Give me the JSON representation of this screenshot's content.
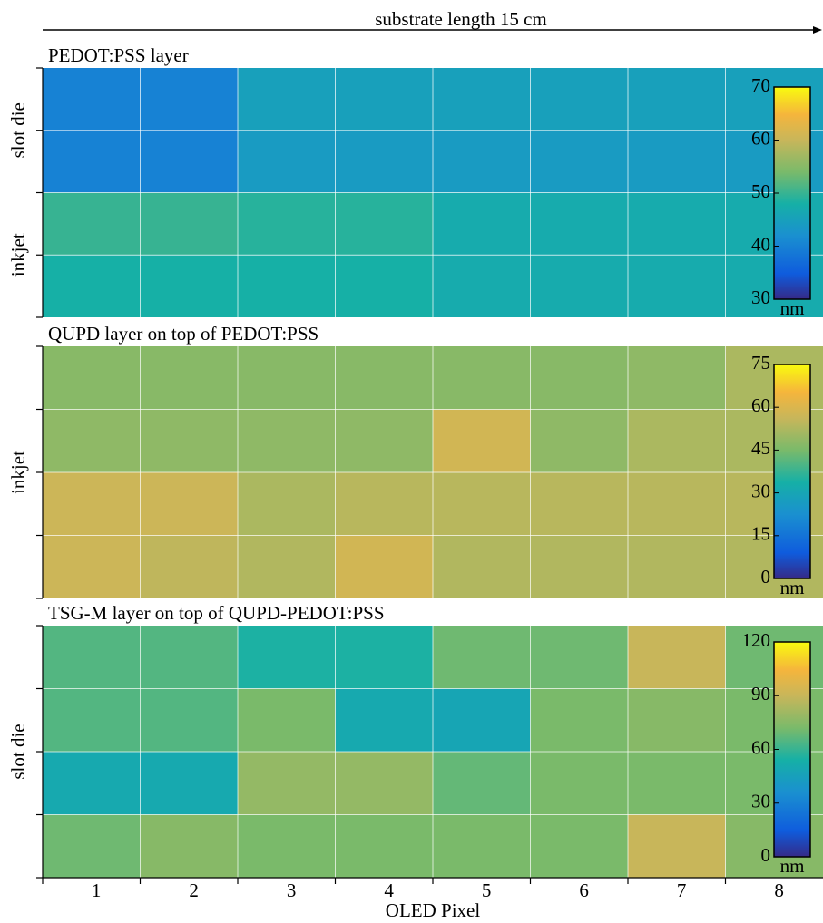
{
  "header": "substrate length 15 cm",
  "x_axis": {
    "label": "OLED Pixel",
    "categories": [
      "1",
      "2",
      "3",
      "4",
      "5",
      "6",
      "7",
      "8"
    ]
  },
  "chart_data": [
    {
      "type": "heatmap",
      "title": "PEDOT:PSS layer",
      "y_labels": [
        "slot die",
        "inkjet"
      ],
      "values": [
        [
          40,
          40,
          45,
          45,
          45,
          45,
          45,
          45
        ],
        [
          40,
          40,
          44,
          44,
          44,
          44,
          44,
          44
        ],
        [
          50,
          50,
          49,
          49,
          47,
          47,
          47,
          47
        ],
        [
          48,
          48,
          48,
          48,
          47,
          47,
          47,
          47
        ]
      ],
      "zlim": [
        30,
        70
      ],
      "zticks": [
        70,
        60,
        50,
        40,
        30
      ],
      "zlabel": "nm"
    },
    {
      "type": "heatmap",
      "title": "QUPD layer on top of PEDOT:PSS",
      "y_labels": [
        "inkjet"
      ],
      "values": [
        [
          47,
          47,
          47,
          47,
          47,
          47,
          48,
          52
        ],
        [
          48,
          48,
          48,
          48,
          58,
          48,
          52,
          52
        ],
        [
          57,
          57,
          52,
          54,
          54,
          54,
          54,
          54
        ],
        [
          57,
          55,
          53,
          58,
          53,
          53,
          53,
          53
        ]
      ],
      "zlim": [
        0,
        75
      ],
      "zticks": [
        75,
        60,
        45,
        30,
        15,
        0
      ],
      "zlabel": "nm"
    },
    {
      "type": "heatmap",
      "title": "TSG-M layer on top of QUPD-PEDOT:PSS",
      "y_labels": [
        "slot die"
      ],
      "values": [
        [
          65,
          65,
          55,
          55,
          70,
          70,
          90,
          70
        ],
        [
          65,
          65,
          72,
          50,
          48,
          72,
          75,
          72
        ],
        [
          50,
          50,
          78,
          78,
          68,
          72,
          72,
          72
        ],
        [
          70,
          75,
          72,
          72,
          72,
          72,
          90,
          75
        ]
      ],
      "zlim": [
        0,
        120
      ],
      "zticks": [
        120,
        90,
        60,
        30,
        0
      ],
      "zlabel": "nm"
    }
  ]
}
